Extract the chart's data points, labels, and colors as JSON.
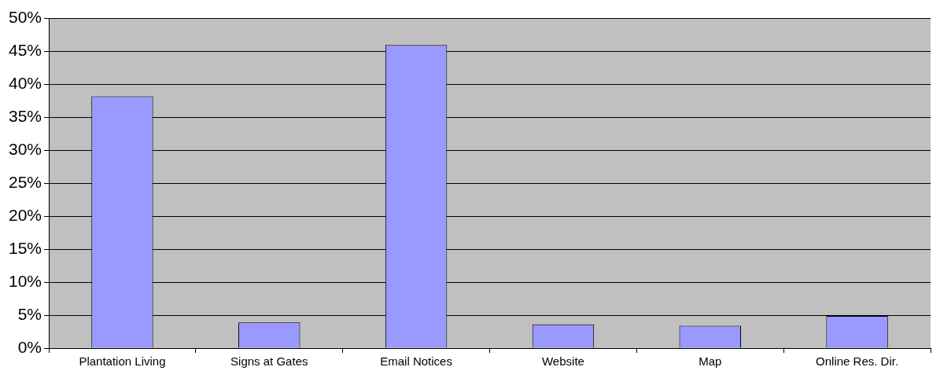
{
  "chart_data": {
    "type": "bar",
    "categories": [
      "Plantation Living",
      "Signs at Gates",
      "Email Notices",
      "Website",
      "Map",
      "Online Res. Dir."
    ],
    "values": [
      38.2,
      3.9,
      46.0,
      3.6,
      3.4,
      4.9
    ],
    "color": "#9999ff",
    "ylim": [
      0,
      50
    ],
    "yticks": [
      {
        "value": 0,
        "label": "0%"
      },
      {
        "value": 5,
        "label": "5%"
      },
      {
        "value": 10,
        "label": "10%"
      },
      {
        "value": 15,
        "label": "15%"
      },
      {
        "value": 20,
        "label": "20%"
      },
      {
        "value": 25,
        "label": "25%"
      },
      {
        "value": 30,
        "label": "30%"
      },
      {
        "value": 35,
        "label": "35%"
      },
      {
        "value": 40,
        "label": "40%"
      },
      {
        "value": 45,
        "label": "45%"
      },
      {
        "value": 50,
        "label": "50%"
      }
    ],
    "grid": "y",
    "legend": false
  }
}
